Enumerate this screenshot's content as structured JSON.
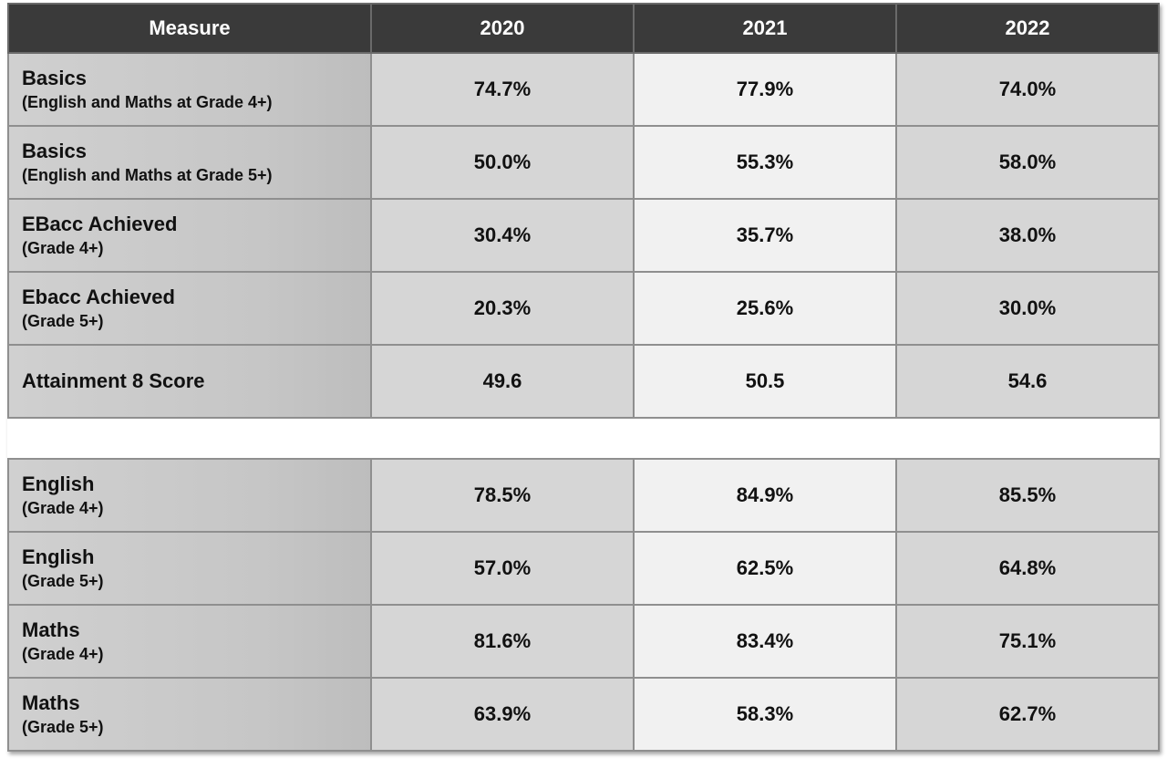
{
  "header": {
    "measure": "Measure",
    "y2020": "2020",
    "y2021": "2021",
    "y2022": "2022"
  },
  "rows": [
    {
      "title": "Basics",
      "sub": "(English and Maths at Grade 4+)",
      "v2020": "74.7%",
      "v2021": "77.9%",
      "v2022": "74.0%"
    },
    {
      "title": "Basics",
      "sub": "(English and Maths at Grade 5+)",
      "v2020": "50.0%",
      "v2021": "55.3%",
      "v2022": "58.0%"
    },
    {
      "title": "EBacc Achieved",
      "sub": "(Grade 4+)",
      "v2020": "30.4%",
      "v2021": "35.7%",
      "v2022": "38.0%"
    },
    {
      "title": "Ebacc Achieved",
      "sub": "(Grade 5+)",
      "v2020": "20.3%",
      "v2021": "25.6%",
      "v2022": "30.0%"
    },
    {
      "title": "Attainment 8 Score",
      "sub": "",
      "v2020": "49.6",
      "v2021": "50.5",
      "v2022": "54.6"
    },
    {
      "title": "English",
      "sub": "(Grade 4+)",
      "v2020": "78.5%",
      "v2021": "84.9%",
      "v2022": "85.5%"
    },
    {
      "title": "English",
      "sub": "(Grade 5+)",
      "v2020": "57.0%",
      "v2021": "62.5%",
      "v2022": "64.8%"
    },
    {
      "title": "Maths",
      "sub": "(Grade 4+)",
      "v2020": "81.6%",
      "v2021": "83.4%",
      "v2022": "75.1%"
    },
    {
      "title": "Maths",
      "sub": "(Grade 5+)",
      "v2020": "63.9%",
      "v2021": "58.3%",
      "v2022": "62.7%"
    }
  ]
}
